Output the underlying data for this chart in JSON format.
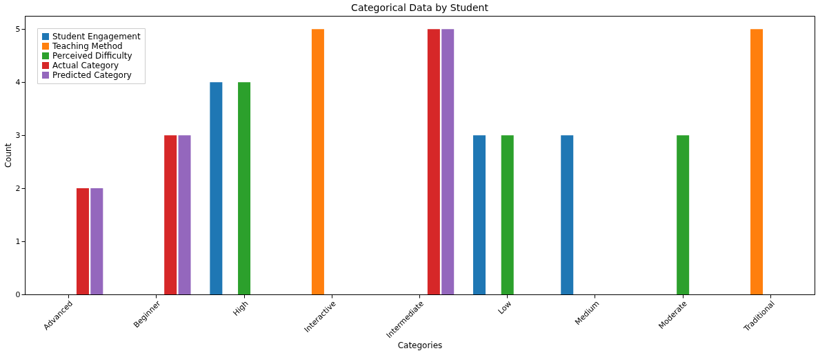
{
  "chart_data": {
    "type": "bar",
    "title": "Categorical Data by Student",
    "xlabel": "Categories",
    "ylabel": "Count",
    "categories": [
      "Advanced",
      "Beginner",
      "High",
      "Interactive",
      "Intermediate",
      "Low",
      "Medium",
      "Moderate",
      "Traditional"
    ],
    "series": [
      {
        "name": "Student Engagement",
        "color": "#1f77b4",
        "values": [
          0,
          0,
          4,
          0,
          0,
          3,
          3,
          0,
          0
        ]
      },
      {
        "name": "Teaching Method",
        "color": "#ff7f0e",
        "values": [
          0,
          0,
          0,
          5,
          0,
          0,
          0,
          0,
          5
        ]
      },
      {
        "name": "Perceived Difficulty",
        "color": "#2ca02c",
        "values": [
          0,
          0,
          4,
          0,
          0,
          3,
          0,
          3,
          0
        ]
      },
      {
        "name": "Actual Category",
        "color": "#d62728",
        "values": [
          2,
          3,
          0,
          0,
          5,
          0,
          0,
          0,
          0
        ]
      },
      {
        "name": "Predicted Category",
        "color": "#9467bd",
        "values": [
          2,
          3,
          0,
          0,
          5,
          0,
          0,
          0,
          0
        ]
      }
    ],
    "ylim": [
      0,
      5.25
    ],
    "yticks": [
      0,
      1,
      2,
      3,
      4,
      5
    ],
    "grid": false,
    "legend": "top left"
  }
}
